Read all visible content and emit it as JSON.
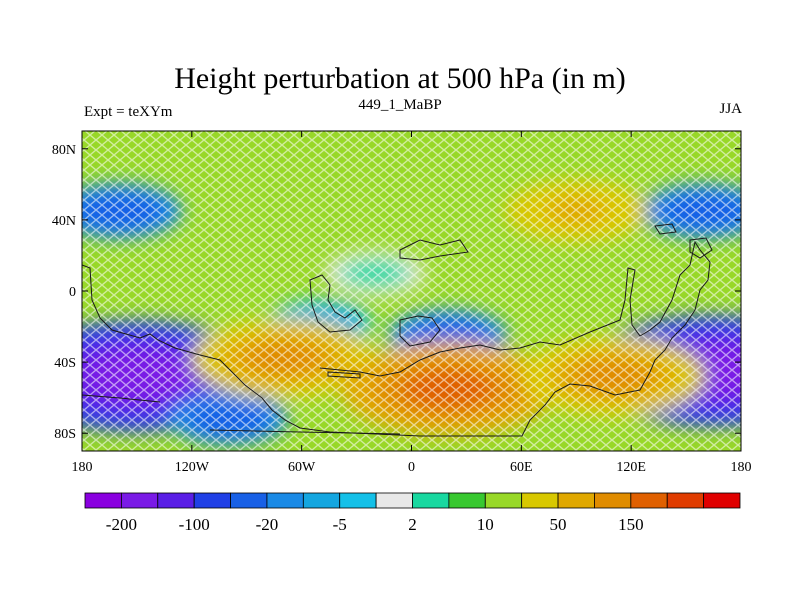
{
  "chart_data": {
    "type": "heatmap",
    "title": "Height perturbation at 500 hPa (in m)",
    "left_subtitle": "Expt = teXYm",
    "center_subtitle": "449_1_MaBP",
    "right_subtitle": "JJA",
    "x_ticks": [
      "180",
      "120W",
      "60W",
      "0",
      "60E",
      "120E",
      "180"
    ],
    "y_ticks": [
      "80N",
      "40N",
      "0",
      "40S",
      "80S"
    ],
    "xlim": [
      -180,
      180
    ],
    "ylim": [
      -90,
      90
    ],
    "x_tick_values": [
      -180,
      -120,
      -60,
      0,
      60,
      120,
      180
    ],
    "y_tick_values": [
      80,
      40,
      0,
      -40,
      -80
    ],
    "colorbar": {
      "colors": [
        "#8a00e0",
        "#7a1ae6",
        "#5a1ee6",
        "#2040e6",
        "#1860e6",
        "#1a8ae6",
        "#14a6e0",
        "#14c0e8",
        "#e8e8e8",
        "#18d8a0",
        "#38c830",
        "#98d828",
        "#d8c800",
        "#e0a800",
        "#e08c00",
        "#e06000",
        "#e03c00",
        "#e00000"
      ],
      "labels": [
        "-200",
        "-100",
        "-20",
        "-5",
        "2",
        "10",
        "50",
        "150"
      ]
    },
    "regions": [
      {
        "lon": -160,
        "lat": 45,
        "value": -40
      },
      {
        "lon": 160,
        "lat": 45,
        "value": -40
      },
      {
        "lon": -150,
        "lat": -48,
        "value": -200
      },
      {
        "lon": 165,
        "lat": -45,
        "value": -200
      },
      {
        "lon": -100,
        "lat": -72,
        "value": -30
      },
      {
        "lon": 20,
        "lat": -25,
        "value": -30
      },
      {
        "lon": -50,
        "lat": -18,
        "value": -10
      },
      {
        "lon": 90,
        "lat": 45,
        "value": 60
      },
      {
        "lon": -70,
        "lat": -38,
        "value": 110
      },
      {
        "lon": 20,
        "lat": -55,
        "value": 150
      },
      {
        "lon": 110,
        "lat": -48,
        "value": 110
      },
      {
        "lon": -20,
        "lat": 10,
        "value": 3
      }
    ]
  }
}
